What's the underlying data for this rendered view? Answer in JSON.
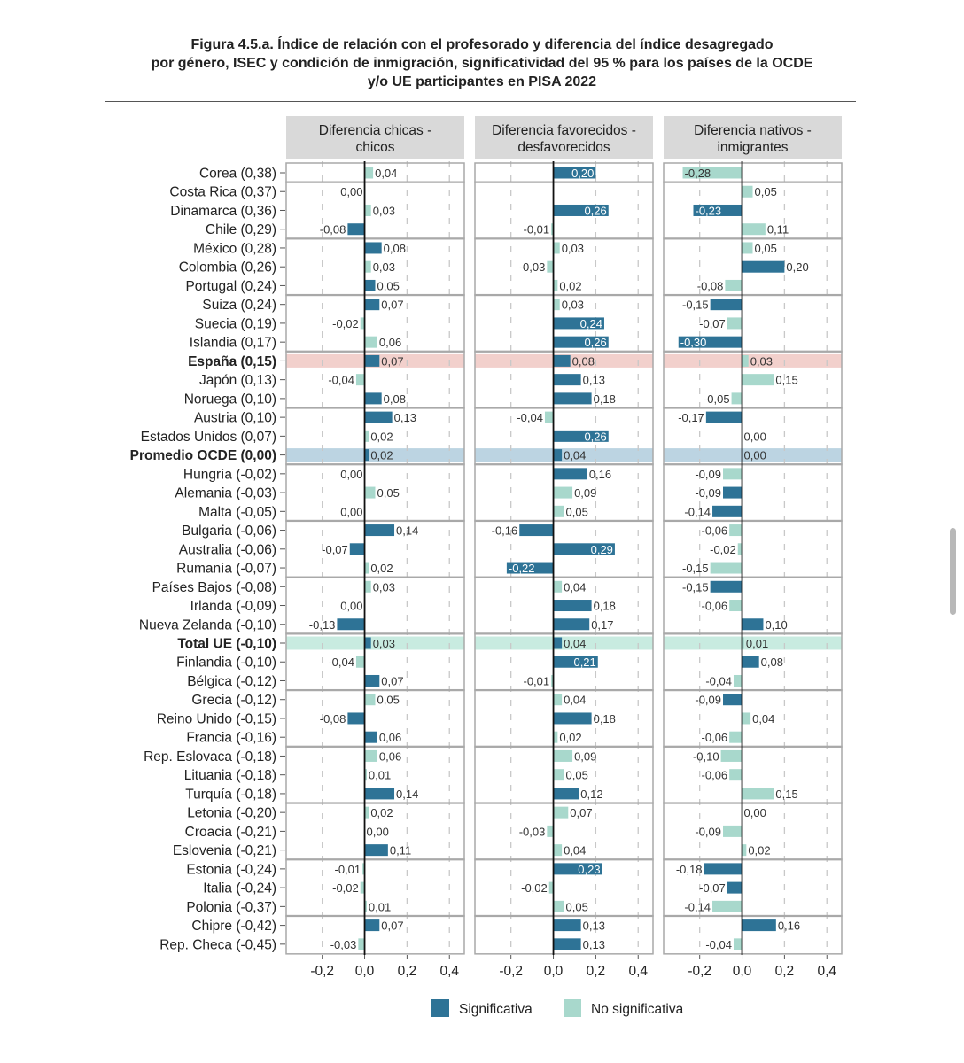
{
  "title_lines": [
    "Figura 4.5.a. Índice de relación con el profesorado y diferencia del índice desagregado",
    "por género, ISEC y condición de inmigración, significatividad del 95 % para los países de la OCDE",
    "y/o UE participantes en PISA 2022"
  ],
  "chart_data": {
    "type": "bar",
    "orientation": "horizontal",
    "panels": [
      "Diferencia chicas - chicos",
      "Diferencia favorecidos - desfavorecidos",
      "Diferencia nativos - inmigrantes"
    ],
    "panel_titles_lines": [
      [
        "Diferencia chicas -",
        "chicos"
      ],
      [
        "Diferencia favorecidos -",
        "desfavorecidos"
      ],
      [
        "Diferencia nativos -",
        "inmigrantes"
      ]
    ],
    "x_ticks": [
      "-0,2",
      "0,0",
      "0,2",
      "0,4"
    ],
    "x_tick_values": [
      -0.2,
      0,
      0.2,
      0.4
    ],
    "xlim": [
      -0.37,
      0.47
    ],
    "grid": "vertical dashed",
    "legend": {
      "placement": "bottom",
      "items": [
        {
          "label": "Significativa",
          "color": "#2e7396"
        },
        {
          "label": "No significativa",
          "color": "#a8d8cc"
        }
      ]
    },
    "colors": {
      "significant": "#2e7396",
      "not_significant": "#a8d8cc",
      "highlight_spain": "#f2d0cc",
      "highlight_oecd": "#bcd4e2",
      "highlight_eu": "#c8ebe0"
    },
    "rows": [
      {
        "label": "Corea (0,38)",
        "values": [
          0.04,
          0.2,
          -0.28
        ],
        "sig": [
          false,
          true,
          false
        ]
      },
      {
        "label": "Costa Rica (0,37)",
        "values": [
          0.0,
          null,
          0.05
        ],
        "sig": [
          false,
          false,
          false
        ]
      },
      {
        "label": "Dinamarca (0,36)",
        "values": [
          0.03,
          0.26,
          -0.23
        ],
        "sig": [
          false,
          true,
          true
        ]
      },
      {
        "label": "Chile (0,29)",
        "values": [
          -0.08,
          -0.01,
          0.11
        ],
        "sig": [
          true,
          false,
          false
        ]
      },
      {
        "label": "México (0,28)",
        "values": [
          0.08,
          0.03,
          0.05
        ],
        "sig": [
          true,
          false,
          false
        ]
      },
      {
        "label": "Colombia (0,26)",
        "values": [
          0.03,
          -0.03,
          0.2
        ],
        "sig": [
          false,
          false,
          true
        ]
      },
      {
        "label": "Portugal (0,24)",
        "values": [
          0.05,
          0.02,
          -0.08
        ],
        "sig": [
          true,
          false,
          false
        ]
      },
      {
        "label": "Suiza (0,24)",
        "values": [
          0.07,
          0.03,
          -0.15
        ],
        "sig": [
          true,
          false,
          true
        ]
      },
      {
        "label": "Suecia (0,19)",
        "values": [
          -0.02,
          0.24,
          -0.07
        ],
        "sig": [
          false,
          true,
          false
        ]
      },
      {
        "label": "Islandia (0,17)",
        "values": [
          0.06,
          0.26,
          -0.3
        ],
        "sig": [
          false,
          true,
          true
        ]
      },
      {
        "label": "España (0,15)",
        "values": [
          0.07,
          0.08,
          0.03
        ],
        "sig": [
          true,
          true,
          false
        ],
        "bold": true,
        "highlight": "spain"
      },
      {
        "label": "Japón (0,13)",
        "values": [
          -0.04,
          0.13,
          0.15
        ],
        "sig": [
          false,
          true,
          false
        ]
      },
      {
        "label": "Noruega (0,10)",
        "values": [
          0.08,
          0.18,
          -0.05
        ],
        "sig": [
          true,
          true,
          false
        ]
      },
      {
        "label": "Austria (0,10)",
        "values": [
          0.13,
          -0.04,
          -0.17
        ],
        "sig": [
          true,
          false,
          true
        ]
      },
      {
        "label": "Estados Unidos (0,07)",
        "values": [
          0.02,
          0.26,
          0.0
        ],
        "sig": [
          false,
          true,
          false
        ]
      },
      {
        "label": "Promedio OCDE (0,00)",
        "values": [
          0.02,
          0.04,
          0.0
        ],
        "sig": [
          true,
          true,
          true
        ],
        "bold": true,
        "highlight": "oecd"
      },
      {
        "label": "Hungría (-0,02)",
        "values": [
          0.0,
          0.16,
          -0.09
        ],
        "sig": [
          false,
          true,
          false
        ]
      },
      {
        "label": "Alemania (-0,03)",
        "values": [
          0.05,
          0.09,
          -0.09
        ],
        "sig": [
          false,
          false,
          true
        ]
      },
      {
        "label": "Malta (-0,05)",
        "values": [
          0.0,
          0.05,
          -0.14
        ],
        "sig": [
          false,
          false,
          true
        ]
      },
      {
        "label": "Bulgaria (-0,06)",
        "values": [
          0.14,
          -0.16,
          -0.06
        ],
        "sig": [
          true,
          true,
          false
        ]
      },
      {
        "label": "Australia (-0,06)",
        "values": [
          -0.07,
          0.29,
          -0.02
        ],
        "sig": [
          true,
          true,
          false
        ]
      },
      {
        "label": "Rumanía (-0,07)",
        "values": [
          0.02,
          -0.22,
          -0.15
        ],
        "sig": [
          false,
          true,
          false
        ]
      },
      {
        "label": "Países Bajos (-0,08)",
        "values": [
          0.03,
          0.04,
          -0.15
        ],
        "sig": [
          false,
          false,
          true
        ]
      },
      {
        "label": "Irlanda (-0,09)",
        "values": [
          0.0,
          0.18,
          -0.06
        ],
        "sig": [
          false,
          true,
          false
        ]
      },
      {
        "label": "Nueva Zelanda (-0,10)",
        "values": [
          -0.13,
          0.17,
          0.1
        ],
        "sig": [
          true,
          true,
          true
        ]
      },
      {
        "label": "Total UE (-0,10)",
        "values": [
          0.03,
          0.04,
          0.01
        ],
        "sig": [
          true,
          true,
          false
        ],
        "bold": true,
        "highlight": "eu"
      },
      {
        "label": "Finlandia (-0,10)",
        "values": [
          -0.04,
          0.21,
          0.08
        ],
        "sig": [
          false,
          true,
          true
        ]
      },
      {
        "label": "Bélgica (-0,12)",
        "values": [
          0.07,
          -0.01,
          -0.04
        ],
        "sig": [
          true,
          false,
          false
        ]
      },
      {
        "label": "Grecia (-0,12)",
        "values": [
          0.05,
          0.04,
          -0.09
        ],
        "sig": [
          false,
          false,
          true
        ]
      },
      {
        "label": "Reino Unido (-0,15)",
        "values": [
          -0.08,
          0.18,
          0.04
        ],
        "sig": [
          true,
          true,
          false
        ]
      },
      {
        "label": "Francia (-0,16)",
        "values": [
          0.06,
          0.02,
          -0.06
        ],
        "sig": [
          true,
          false,
          false
        ]
      },
      {
        "label": "Rep. Eslovaca (-0,18)",
        "values": [
          0.06,
          0.09,
          -0.1
        ],
        "sig": [
          false,
          false,
          false
        ]
      },
      {
        "label": "Lituania (-0,18)",
        "values": [
          0.01,
          0.05,
          -0.06
        ],
        "sig": [
          false,
          false,
          false
        ]
      },
      {
        "label": "Turquía (-0,18)",
        "values": [
          0.14,
          0.12,
          0.15
        ],
        "sig": [
          true,
          true,
          false
        ]
      },
      {
        "label": "Letonia (-0,20)",
        "values": [
          0.02,
          0.07,
          0.0
        ],
        "sig": [
          false,
          false,
          false
        ]
      },
      {
        "label": "Croacia (-0,21)",
        "values": [
          0.0,
          -0.03,
          -0.09
        ],
        "sig": [
          false,
          false,
          false
        ]
      },
      {
        "label": "Eslovenia (-0,21)",
        "values": [
          0.11,
          0.04,
          0.02
        ],
        "sig": [
          true,
          false,
          false
        ]
      },
      {
        "label": "Estonia (-0,24)",
        "values": [
          -0.01,
          0.23,
          -0.18
        ],
        "sig": [
          false,
          true,
          true
        ]
      },
      {
        "label": "Italia (-0,24)",
        "values": [
          -0.02,
          -0.02,
          -0.07
        ],
        "sig": [
          false,
          false,
          true
        ]
      },
      {
        "label": "Polonia (-0,37)",
        "values": [
          0.01,
          0.05,
          -0.14
        ],
        "sig": [
          false,
          false,
          false
        ]
      },
      {
        "label": "Chipre (-0,42)",
        "values": [
          0.07,
          0.13,
          0.16
        ],
        "sig": [
          true,
          true,
          true
        ]
      },
      {
        "label": "Rep. Checa (-0,45)",
        "values": [
          -0.03,
          0.13,
          -0.04
        ],
        "sig": [
          false,
          true,
          false
        ]
      }
    ]
  }
}
